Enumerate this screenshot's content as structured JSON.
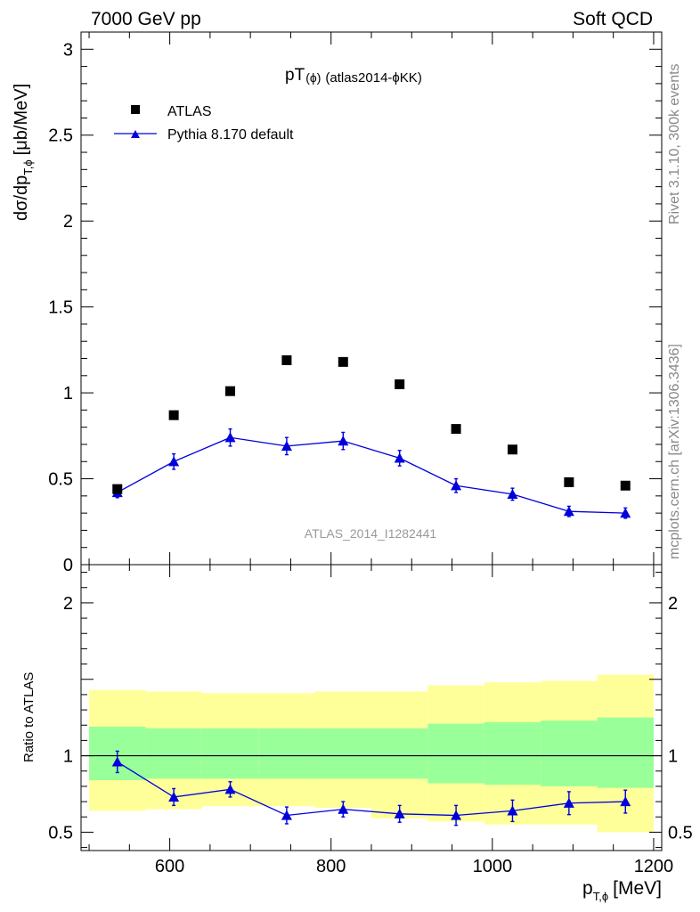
{
  "header": {
    "left": "7000 GeV pp",
    "right": "Soft QCD"
  },
  "side": {
    "top": "Rivet 3.1.10,  300k events",
    "bottom": "mcplots.cern.ch [arXiv:1306.3436]"
  },
  "chart_data": [
    {
      "type": "scatter",
      "title": "pT(ϕ) (atlas2014-ϕKK)",
      "title_main": "pT",
      "title_paren": "(ϕ)",
      "title_rest": "(atlas2014-ϕKK)",
      "ylabel": "dσ/dp",
      "ylabel_sub": "T,ϕ",
      "ylabel_unit": "[μb/MeV]",
      "watermark": "ATLAS_2014_I1282441",
      "ylim": [
        0,
        3.1
      ],
      "yticks": [
        0,
        0.5,
        1,
        1.5,
        2,
        2.5,
        3
      ],
      "ytick_labels": [
        "0",
        "0.5",
        "1",
        "1.5",
        "2",
        "2.5",
        "3"
      ],
      "xlim": [
        490,
        1210
      ],
      "legend_position": "top-left",
      "series": [
        {
          "name": "ATLAS",
          "marker": "square",
          "color": "#000000",
          "x": [
            535,
            605,
            675,
            745,
            815,
            885,
            955,
            1025,
            1095,
            1165
          ],
          "y": [
            0.44,
            0.87,
            1.01,
            1.19,
            1.18,
            1.05,
            0.79,
            0.67,
            0.48,
            0.46
          ]
        },
        {
          "name": "Pythia 8.170 default",
          "marker": "triangle",
          "color": "#0000dd",
          "x": [
            535,
            605,
            675,
            745,
            815,
            885,
            955,
            1025,
            1095,
            1165
          ],
          "y": [
            0.42,
            0.6,
            0.74,
            0.69,
            0.72,
            0.62,
            0.46,
            0.41,
            0.31,
            0.3
          ],
          "yerr": [
            0.03,
            0.045,
            0.05,
            0.05,
            0.05,
            0.045,
            0.04,
            0.035,
            0.03,
            0.03
          ]
        }
      ]
    },
    {
      "type": "line",
      "ylabel": "Ratio to ATLAS",
      "xlabel": "p",
      "xlabel_sub": "T,ϕ",
      "xlabel_unit": "[MeV]",
      "xlim": [
        490,
        1210
      ],
      "xticks": [
        600,
        800,
        1000,
        1200
      ],
      "xtick_labels": [
        "600",
        "800",
        "1000",
        "1200"
      ],
      "ylim": [
        0.38,
        2.25
      ],
      "yticks": [
        0.5,
        1,
        2
      ],
      "ytick_labels": [
        "0.5",
        "1",
        "2"
      ],
      "reference_line": 1,
      "bin_edges": [
        500,
        570,
        640,
        710,
        780,
        850,
        920,
        990,
        1060,
        1130,
        1200
      ],
      "band_inner": {
        "color": "#99ff99",
        "low": [
          0.84,
          0.85,
          0.85,
          0.85,
          0.85,
          0.85,
          0.82,
          0.81,
          0.8,
          0.79
        ],
        "high": [
          1.19,
          1.18,
          1.18,
          1.18,
          1.18,
          1.18,
          1.21,
          1.22,
          1.23,
          1.25
        ]
      },
      "band_outer": {
        "color": "#ffff99",
        "low": [
          0.64,
          0.65,
          0.67,
          0.67,
          0.66,
          0.59,
          0.57,
          0.55,
          0.55,
          0.5
        ],
        "high": [
          1.43,
          1.42,
          1.41,
          1.41,
          1.42,
          1.42,
          1.46,
          1.48,
          1.49,
          1.53
        ]
      },
      "series": [
        {
          "name": "Pythia 8.170 default",
          "color": "#0000dd",
          "x": [
            535,
            605,
            675,
            745,
            815,
            885,
            955,
            1025,
            1095,
            1165
          ],
          "y": [
            0.96,
            0.73,
            0.78,
            0.61,
            0.65,
            0.62,
            0.61,
            0.64,
            0.69,
            0.7
          ],
          "yerr": [
            0.07,
            0.055,
            0.05,
            0.055,
            0.05,
            0.055,
            0.065,
            0.07,
            0.075,
            0.075
          ]
        }
      ]
    }
  ]
}
